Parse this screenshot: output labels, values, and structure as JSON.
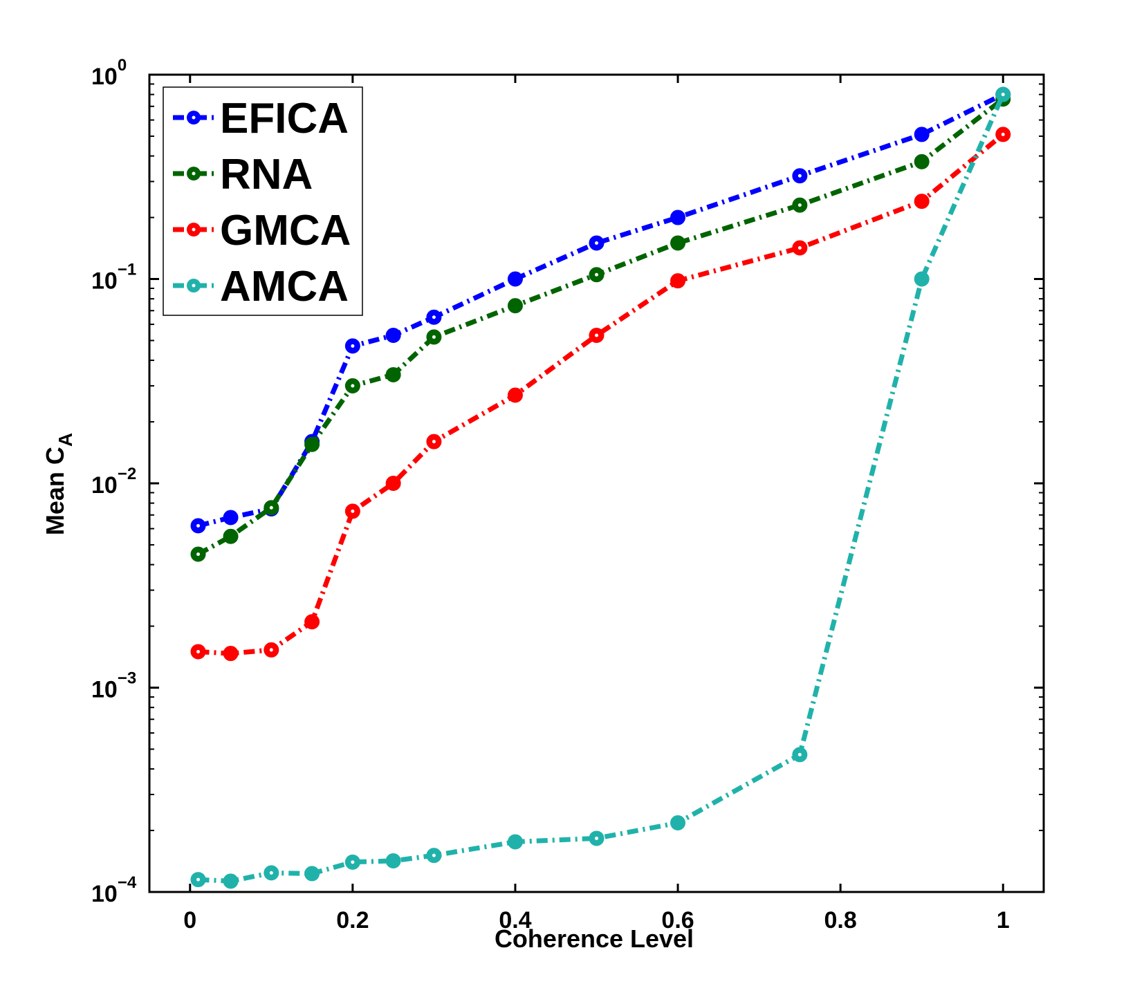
{
  "chart_data": {
    "type": "line",
    "title": "",
    "xlabel": "Coherence Level",
    "ylabel": "Mean C",
    "ylabel_subscript": "A",
    "yscale": "log",
    "xlim": [
      -0.05,
      1.05
    ],
    "ylim": [
      0.0001,
      1
    ],
    "x_ticks": [
      0,
      0.2,
      0.4,
      0.6,
      0.8,
      1
    ],
    "x_tick_labels": [
      "0",
      "0.2",
      "0.4",
      "0.6",
      "0.8",
      "1"
    ],
    "y_ticks": [
      {
        "value": 1,
        "base": "10",
        "exp": "0"
      },
      {
        "value": 0.1,
        "base": "10",
        "exp": "−1"
      },
      {
        "value": 0.01,
        "base": "10",
        "exp": "−2"
      },
      {
        "value": 0.001,
        "base": "10",
        "exp": "−3"
      },
      {
        "value": 0.0001,
        "base": "10",
        "exp": "−4"
      }
    ],
    "legend_position": "top-left",
    "x": [
      0.01,
      0.05,
      0.1,
      0.15,
      0.2,
      0.25,
      0.3,
      0.4,
      0.5,
      0.6,
      0.75,
      0.9,
      1.0
    ],
    "series": [
      {
        "name": "EFICA",
        "color": "#0000ff",
        "values": [
          0.0062,
          0.0068,
          0.0075,
          0.016,
          0.047,
          0.053,
          0.065,
          0.1,
          0.15,
          0.2,
          0.32,
          0.51,
          0.8
        ]
      },
      {
        "name": "RNA",
        "color": "#006400",
        "values": [
          0.0045,
          0.0055,
          0.0076,
          0.0155,
          0.03,
          0.034,
          0.052,
          0.074,
          0.105,
          0.15,
          0.23,
          0.375,
          0.76
        ]
      },
      {
        "name": "GMCA",
        "color": "#ff0000",
        "values": [
          0.0015,
          0.00147,
          0.00153,
          0.0021,
          0.0073,
          0.01,
          0.016,
          0.027,
          0.053,
          0.098,
          0.142,
          0.24,
          0.51
        ]
      },
      {
        "name": "AMCA",
        "color": "#20b2aa",
        "values": [
          0.000115,
          0.000113,
          0.000124,
          0.000123,
          0.00014,
          0.000142,
          0.000151,
          0.000176,
          0.000183,
          0.000218,
          0.00047,
          0.1,
          0.8
        ]
      }
    ]
  }
}
